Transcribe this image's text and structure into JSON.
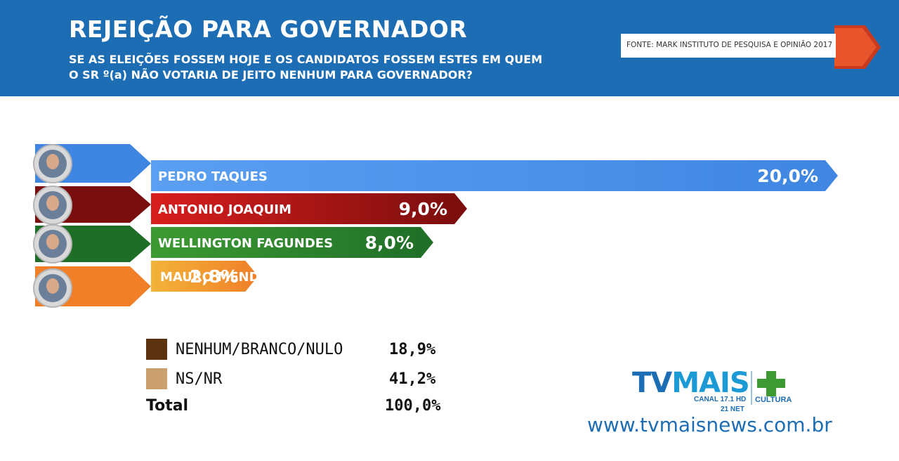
{
  "header": {
    "title": "REJEIÇÃO PARA GOVERNADOR",
    "subtitle_line1": "SE AS ELEIÇÕES FOSSEM HOJE E OS CANDIDATOS FOSSEM ESTES EM QUEM",
    "subtitle_line2": "O SR º(a) NÃO VOTARIA DE JEITO NENHUM PARA GOVERNADOR?",
    "source": "FONTE: MARK INSTITUTO DE PESQUISA E OPINIÃO 2017"
  },
  "chart_data": {
    "type": "bar",
    "orientation": "horizontal",
    "title": "REJEIÇÃO PARA GOVERNADOR",
    "categories": [
      "PEDRO TAQUES",
      "ANTONIO JOAQUIM",
      "WELLINGTON FAGUNDES",
      "MAURO MENDES"
    ],
    "values": [
      20.0,
      9.0,
      8.0,
      2.8
    ],
    "value_labels": [
      "20,0%",
      "9,0%",
      "8,0%",
      "2,8%"
    ],
    "colors": [
      "#5b9ff2",
      "#d81e1e",
      "#3d9a32",
      "#f3b33a"
    ],
    "dark_colors": [
      "#3f86e2",
      "#7a0d0d",
      "#1f6e28",
      "#f07f28"
    ],
    "unit": "%"
  },
  "legend": [
    {
      "label": "NENHUM/BRANCO/NULO",
      "value": "18,9%",
      "color": "#5c3310"
    },
    {
      "label": "NS/NR",
      "value": "41,2%",
      "color": "#c9a06e"
    }
  ],
  "total": {
    "label": "Total",
    "value": "100,0%"
  },
  "logo": {
    "tv": "TV",
    "mais": "MAIS",
    "canal": "CANAL 17.1 HD",
    "canal_net": "21 NET",
    "cultura": "CULTURA"
  },
  "website": "www.tvmaisnews.com.br"
}
